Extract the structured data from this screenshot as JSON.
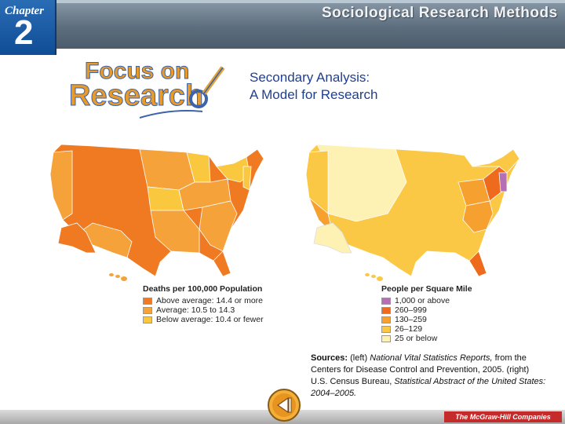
{
  "header": {
    "chapter_label": "Chapter",
    "chapter_number": "2",
    "title": "Sociological Research Methods"
  },
  "logo": {
    "line1": "Focus on",
    "line2": "Research"
  },
  "feature": {
    "title_line1": "Secondary Analysis:",
    "title_line2": "A Model for Research"
  },
  "left_map": {
    "legend_title": "Deaths per 100,000 Population",
    "items": [
      {
        "label": "Above average: 14.4 or more",
        "color": "#f07a22"
      },
      {
        "label": "Average: 10.5 to 14.3",
        "color": "#f6a23a"
      },
      {
        "label": "Below average: 10.4 or fewer",
        "color": "#f9c83e"
      }
    ]
  },
  "right_map": {
    "legend_title": "People per Square Mile",
    "items": [
      {
        "label": "1,000 or above",
        "color": "#b56fb4"
      },
      {
        "label": "260–999",
        "color": "#ee6b1e"
      },
      {
        "label": "130–259",
        "color": "#f6a02f"
      },
      {
        "label": "26–129",
        "color": "#fbc845"
      },
      {
        "label": "25 or below",
        "color": "#fdf1b4"
      }
    ]
  },
  "sources": {
    "label": "Sources:",
    "t1": " (left) ",
    "i1": "National Vital Statistics Reports,",
    "t2": " from the Centers for Disease Control and Prevention, 2005. (right) U.S. Census Bureau, ",
    "i2": "Statistical Abstract of the United States: 2004–2005."
  },
  "footer": {
    "publisher": "The McGraw-Hill Companies"
  },
  "colors": {
    "header": "#5d6e7e",
    "chapter_box": "#1a5ca6",
    "title_text": "#1f3f8f"
  },
  "icons": {
    "back": "back-arrow-icon",
    "magnifier": "magnifier-icon"
  }
}
